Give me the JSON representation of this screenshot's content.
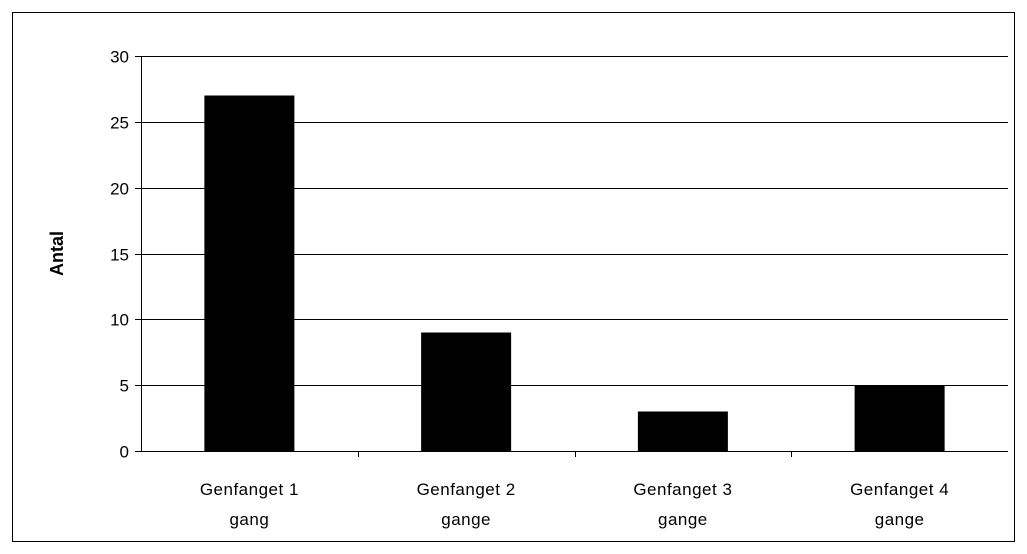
{
  "chart_data": {
    "type": "bar",
    "categories": [
      [
        "Genfanget 1",
        "gang"
      ],
      [
        "Genfanget 2",
        "gange"
      ],
      [
        "Genfanget 3",
        "gange"
      ],
      [
        "Genfanget 4",
        "gange"
      ]
    ],
    "values": [
      27,
      9,
      3,
      5
    ],
    "title": "",
    "xlabel": "",
    "ylabel": "Antal",
    "ylim": [
      0,
      30
    ],
    "yticks": [
      0,
      5,
      10,
      15,
      20,
      25,
      30
    ],
    "grid": true,
    "legend": "none",
    "bar_color": "#000000",
    "grid_color": "#000000"
  }
}
